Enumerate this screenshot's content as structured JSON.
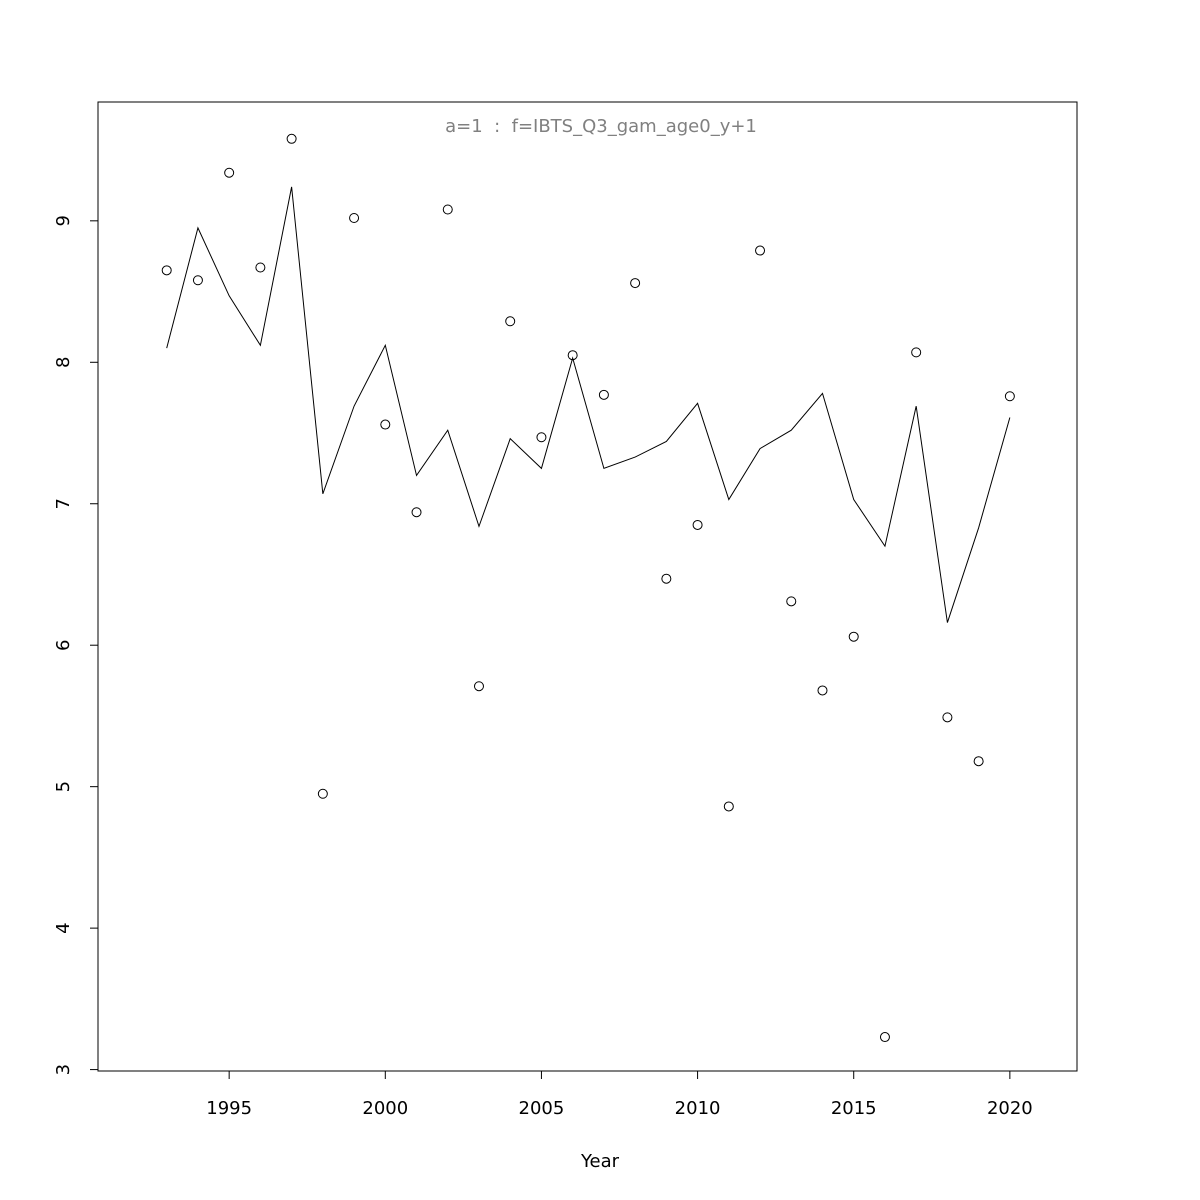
{
  "chart_data": {
    "type": "line",
    "title": "a=1  :  f=IBTS_Q3_gam_age0_y+1",
    "x_label": "Year",
    "x": [
      1993,
      1994,
      1995,
      1996,
      1997,
      1998,
      1999,
      2000,
      2001,
      2002,
      2003,
      2004,
      2005,
      2006,
      2007,
      2008,
      2009,
      2010,
      2011,
      2012,
      2013,
      2014,
      2015,
      2016,
      2017,
      2018,
      2019,
      2020
    ],
    "series": [
      {
        "style": "points",
        "color": "#000000",
        "values": [
          8.65,
          8.58,
          9.34,
          8.67,
          9.58,
          4.95,
          9.02,
          7.56,
          6.94,
          9.08,
          5.71,
          8.29,
          7.47,
          8.05,
          7.77,
          8.56,
          6.47,
          6.85,
          4.86,
          8.79,
          6.31,
          5.68,
          6.06,
          3.23,
          8.07,
          5.49,
          5.18,
          7.76
        ]
      },
      {
        "style": "line",
        "color": "#000000",
        "values": [
          8.1,
          8.95,
          8.47,
          8.12,
          9.24,
          7.07,
          7.69,
          8.12,
          7.2,
          7.52,
          6.84,
          7.46,
          7.25,
          8.03,
          7.25,
          7.33,
          7.44,
          7.71,
          7.03,
          7.39,
          7.52,
          7.78,
          7.03,
          6.7,
          7.69,
          6.16,
          6.83,
          7.61
        ]
      }
    ],
    "xlim": [
      1990.8,
      2022.15
    ],
    "xticks": [
      1995,
      2000,
      2005,
      2010,
      2015,
      2020
    ],
    "ylim": [
      2.99,
      9.84
    ],
    "yticks": [
      3,
      4,
      5,
      6,
      7,
      8,
      9
    ]
  }
}
